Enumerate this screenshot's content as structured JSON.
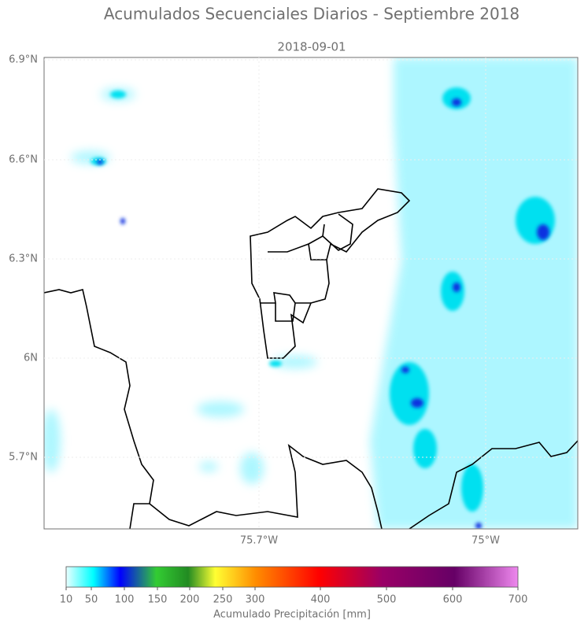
{
  "title": "Acumulados Secuenciales Diarios - Septiembre 2018",
  "subtitle": "2018-09-01",
  "lat_ticks": [
    "6.9°N",
    "6.6°N",
    "6.3°N",
    "6N",
    "5.7°N"
  ],
  "lon_ticks": [
    "75.7°W",
    "75°W"
  ],
  "colorbar": {
    "ticks": [
      10,
      50,
      100,
      150,
      200,
      250,
      300,
      400,
      500,
      600,
      700
    ],
    "label": "Acumulado Precipitación [mm]"
  }
}
